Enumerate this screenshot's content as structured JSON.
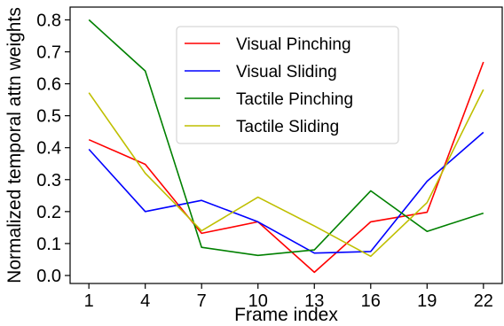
{
  "chart_data": {
    "type": "line",
    "x": [
      1,
      4,
      7,
      10,
      13,
      16,
      19,
      22
    ],
    "xlabel": "Frame index",
    "ylabel": "Normalized temporal attn weights",
    "xlim": [
      0,
      23
    ],
    "ylim": [
      -0.025,
      0.84
    ],
    "xticks": [
      "1",
      "4",
      "7",
      "10",
      "13",
      "16",
      "19",
      "22"
    ],
    "yticks": [
      "0.0",
      "0.1",
      "0.2",
      "0.3",
      "0.4",
      "0.5",
      "0.6",
      "0.7",
      "0.8"
    ],
    "legend_position": "top-center",
    "grid": false,
    "series": [
      {
        "name": "Visual Pinching",
        "color": "#ff0000",
        "values": [
          0.425,
          0.348,
          0.132,
          0.168,
          0.01,
          0.168,
          0.198,
          0.668
        ]
      },
      {
        "name": "Visual Sliding",
        "color": "#0000ff",
        "values": [
          0.395,
          0.2,
          0.235,
          0.168,
          0.07,
          0.075,
          0.295,
          0.448
        ]
      },
      {
        "name": "Tactile Pinching",
        "color": "#008000",
        "values": [
          0.8,
          0.64,
          0.088,
          0.063,
          0.08,
          0.265,
          0.138,
          0.195
        ]
      },
      {
        "name": "Tactile Sliding",
        "color": "#bfbf00",
        "values": [
          0.572,
          0.32,
          0.14,
          0.245,
          0.155,
          0.06,
          0.228,
          0.582
        ]
      }
    ]
  }
}
